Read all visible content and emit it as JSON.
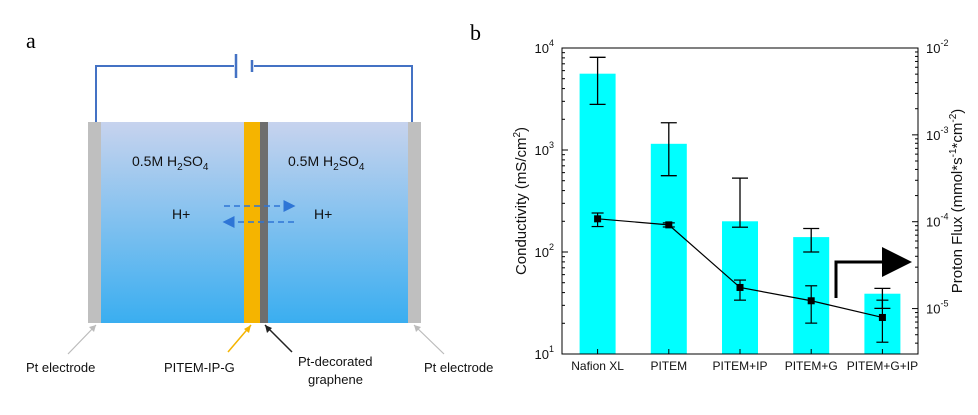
{
  "panel_a": {
    "letter": "a",
    "left_label": "0.5M H",
    "left_sub1": "2",
    "left_label2": "SO",
    "left_sub2": "4",
    "right_label": "0.5M H",
    "right_sub1": "2",
    "right_label2": "SO",
    "right_sub2": "4",
    "ion_left": "H+",
    "ion_right": "H+",
    "pt_electrode_left": "Pt electrode",
    "pt_electrode_right": "Pt electrode",
    "membrane_label": "PITEM-IP-G",
    "graphene_label_1": "Pt-decorated",
    "graphene_label_2": "graphene",
    "colors": {
      "electrolyte_top": "#c7d3ee",
      "electrolyte_bottom": "#3aaef0",
      "electrode": "#bfbfbf",
      "membrane": "#f5b400",
      "graphene": "#6e6e6e",
      "wire": "#4472c4",
      "ion_arrow": "#2e75d6"
    }
  },
  "chart_data": {
    "panel_letter": "b",
    "type": "bar",
    "categories": [
      "Nafion XL",
      "PITEM",
      "PITEM+IP",
      "PITEM+G",
      "PITEM+G+IP"
    ],
    "ylabel": "Conductivity (mS/cm",
    "ylabel_sup": "2",
    "ylabel_end": ")",
    "y2label": "Proton Flux (mmol*s",
    "y2label_sup1": "-1",
    "y2label_mid": "*cm",
    "y2label_sup2": "-2",
    "y2label_end": ")",
    "yscale": "log",
    "ylim": [
      10,
      10000
    ],
    "y2lim": [
      3e-06,
      0.01
    ],
    "yticks": [
      {
        "base": "10",
        "exp": "1"
      },
      {
        "base": "10",
        "exp": "2"
      },
      {
        "base": "10",
        "exp": "3"
      },
      {
        "base": "10",
        "exp": "4"
      }
    ],
    "y2ticks": [
      {
        "base": "10",
        "exp": "-5"
      },
      {
        "base": "10",
        "exp": "-4"
      },
      {
        "base": "10",
        "exp": "-3"
      },
      {
        "base": "10",
        "exp": "-2"
      }
    ],
    "bar_color": "#00ffff",
    "series": [
      {
        "type": "bar",
        "axis": "left",
        "values": [
          5600,
          1150,
          200,
          140,
          39
        ],
        "err_low": [
          2800,
          560,
          175,
          100,
          28
        ],
        "err_high": [
          8100,
          1850,
          530,
          170,
          44
        ]
      },
      {
        "type": "line",
        "axis": "right",
        "values": [
          0.000108,
          9.2e-05,
          1.75e-05,
          1.23e-05,
          7.9e-06
        ],
        "err_low": [
          8.8e-05,
          8.7e-05,
          1.25e-05,
          6.8e-06,
          4.1e-06
        ],
        "err_high": [
          0.000126,
          9.7e-05,
          2.13e-05,
          1.83e-05,
          1.25e-05
        ]
      }
    ],
    "annotation": "arrow pointing to right axis"
  }
}
